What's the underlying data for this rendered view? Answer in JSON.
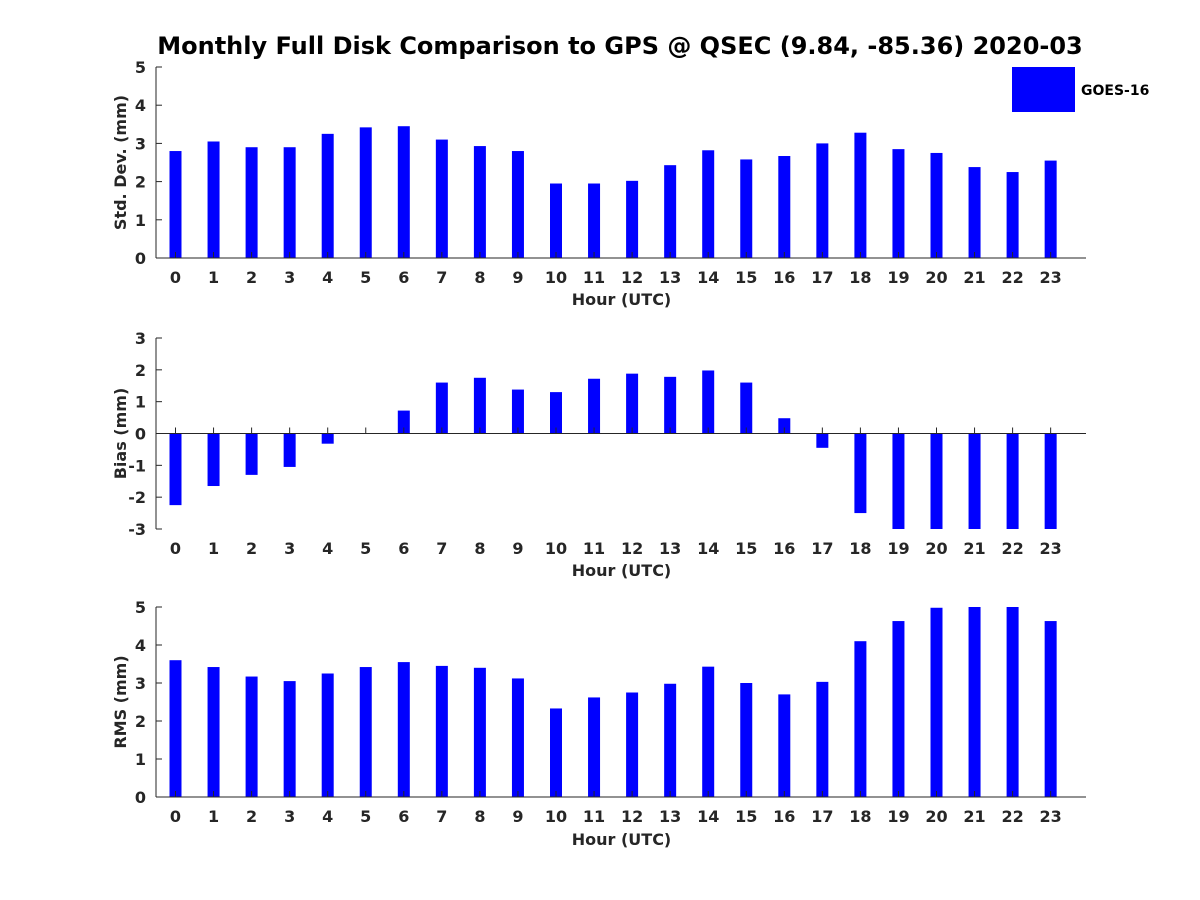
{
  "title": "Monthly Full Disk Comparison to GPS @ QSEC (9.84, -85.36) 2020-03",
  "legend": {
    "label": "GOES-16",
    "color": "#0000ff"
  },
  "chart_data": [
    {
      "type": "bar",
      "xlabel": "Hour (UTC)",
      "ylabel": "Std. Dev. (mm)",
      "ylim": [
        0,
        5
      ],
      "yticks": [
        "0",
        "1",
        "2",
        "3",
        "4",
        "5"
      ],
      "categories": [
        "0",
        "1",
        "2",
        "3",
        "4",
        "5",
        "6",
        "7",
        "8",
        "9",
        "10",
        "11",
        "12",
        "13",
        "14",
        "15",
        "16",
        "17",
        "18",
        "19",
        "20",
        "21",
        "22",
        "23"
      ],
      "series": [
        {
          "name": "GOES-16",
          "values": [
            2.8,
            3.05,
            2.9,
            2.9,
            3.25,
            3.42,
            3.45,
            3.1,
            2.93,
            2.8,
            1.95,
            1.95,
            2.02,
            2.43,
            2.82,
            2.58,
            2.67,
            3.0,
            3.28,
            2.85,
            2.75,
            2.38,
            2.25,
            2.55
          ]
        }
      ],
      "legend_position": "top-right",
      "grid": false
    },
    {
      "type": "bar",
      "xlabel": "Hour (UTC)",
      "ylabel": "Bias (mm)",
      "ylim": [
        -3,
        3
      ],
      "yticks": [
        "-3",
        "-2",
        "-1",
        "0",
        "1",
        "2",
        "3"
      ],
      "categories": [
        "0",
        "1",
        "2",
        "3",
        "4",
        "5",
        "6",
        "7",
        "8",
        "9",
        "10",
        "11",
        "12",
        "13",
        "14",
        "15",
        "16",
        "17",
        "18",
        "19",
        "20",
        "21",
        "22",
        "23"
      ],
      "series": [
        {
          "name": "GOES-16",
          "values": [
            -2.25,
            -1.65,
            -1.3,
            -1.05,
            -0.32,
            0.0,
            0.72,
            1.6,
            1.75,
            1.38,
            1.3,
            1.72,
            1.88,
            1.78,
            1.98,
            1.6,
            0.48,
            -0.45,
            -2.5,
            -3.0,
            -3.0,
            -3.0,
            -3.0,
            -3.0
          ]
        }
      ],
      "grid": false
    },
    {
      "type": "bar",
      "xlabel": "Hour (UTC)",
      "ylabel": "RMS (mm)",
      "ylim": [
        0,
        5
      ],
      "yticks": [
        "0",
        "1",
        "2",
        "3",
        "4",
        "5"
      ],
      "categories": [
        "0",
        "1",
        "2",
        "3",
        "4",
        "5",
        "6",
        "7",
        "8",
        "9",
        "10",
        "11",
        "12",
        "13",
        "14",
        "15",
        "16",
        "17",
        "18",
        "19",
        "20",
        "21",
        "22",
        "23"
      ],
      "series": [
        {
          "name": "GOES-16",
          "values": [
            3.6,
            3.42,
            3.17,
            3.05,
            3.25,
            3.42,
            3.55,
            3.45,
            3.4,
            3.12,
            2.33,
            2.62,
            2.75,
            2.98,
            3.43,
            3.0,
            2.7,
            3.03,
            4.1,
            4.63,
            4.98,
            5.0,
            5.0,
            4.63
          ]
        }
      ],
      "grid": false
    }
  ]
}
